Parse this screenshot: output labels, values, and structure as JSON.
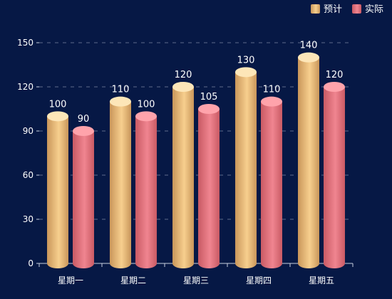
{
  "chart_data": {
    "type": "bar",
    "categories": [
      "星期一",
      "星期二",
      "星期三",
      "星期四",
      "星期五"
    ],
    "series": [
      {
        "name": "预计",
        "values": [
          100,
          110,
          120,
          130,
          140
        ]
      },
      {
        "name": "实际",
        "values": [
          90,
          100,
          105,
          110,
          120
        ]
      }
    ],
    "ylim": [
      0,
      150
    ],
    "yticks": [
      0,
      30,
      60,
      90,
      120,
      150
    ],
    "grid": true,
    "legend_position": "top-right",
    "colors": {
      "background": "#061845",
      "series": [
        {
          "body_light": "#f7cf8e",
          "body_dark": "#c9965a",
          "top": "#fde6b8"
        },
        {
          "body_light": "#f08590",
          "body_dark": "#c95a64",
          "top": "#ffa3ab"
        }
      ],
      "grid": "#5d6a8a",
      "axis": "#c8cfe0"
    }
  }
}
